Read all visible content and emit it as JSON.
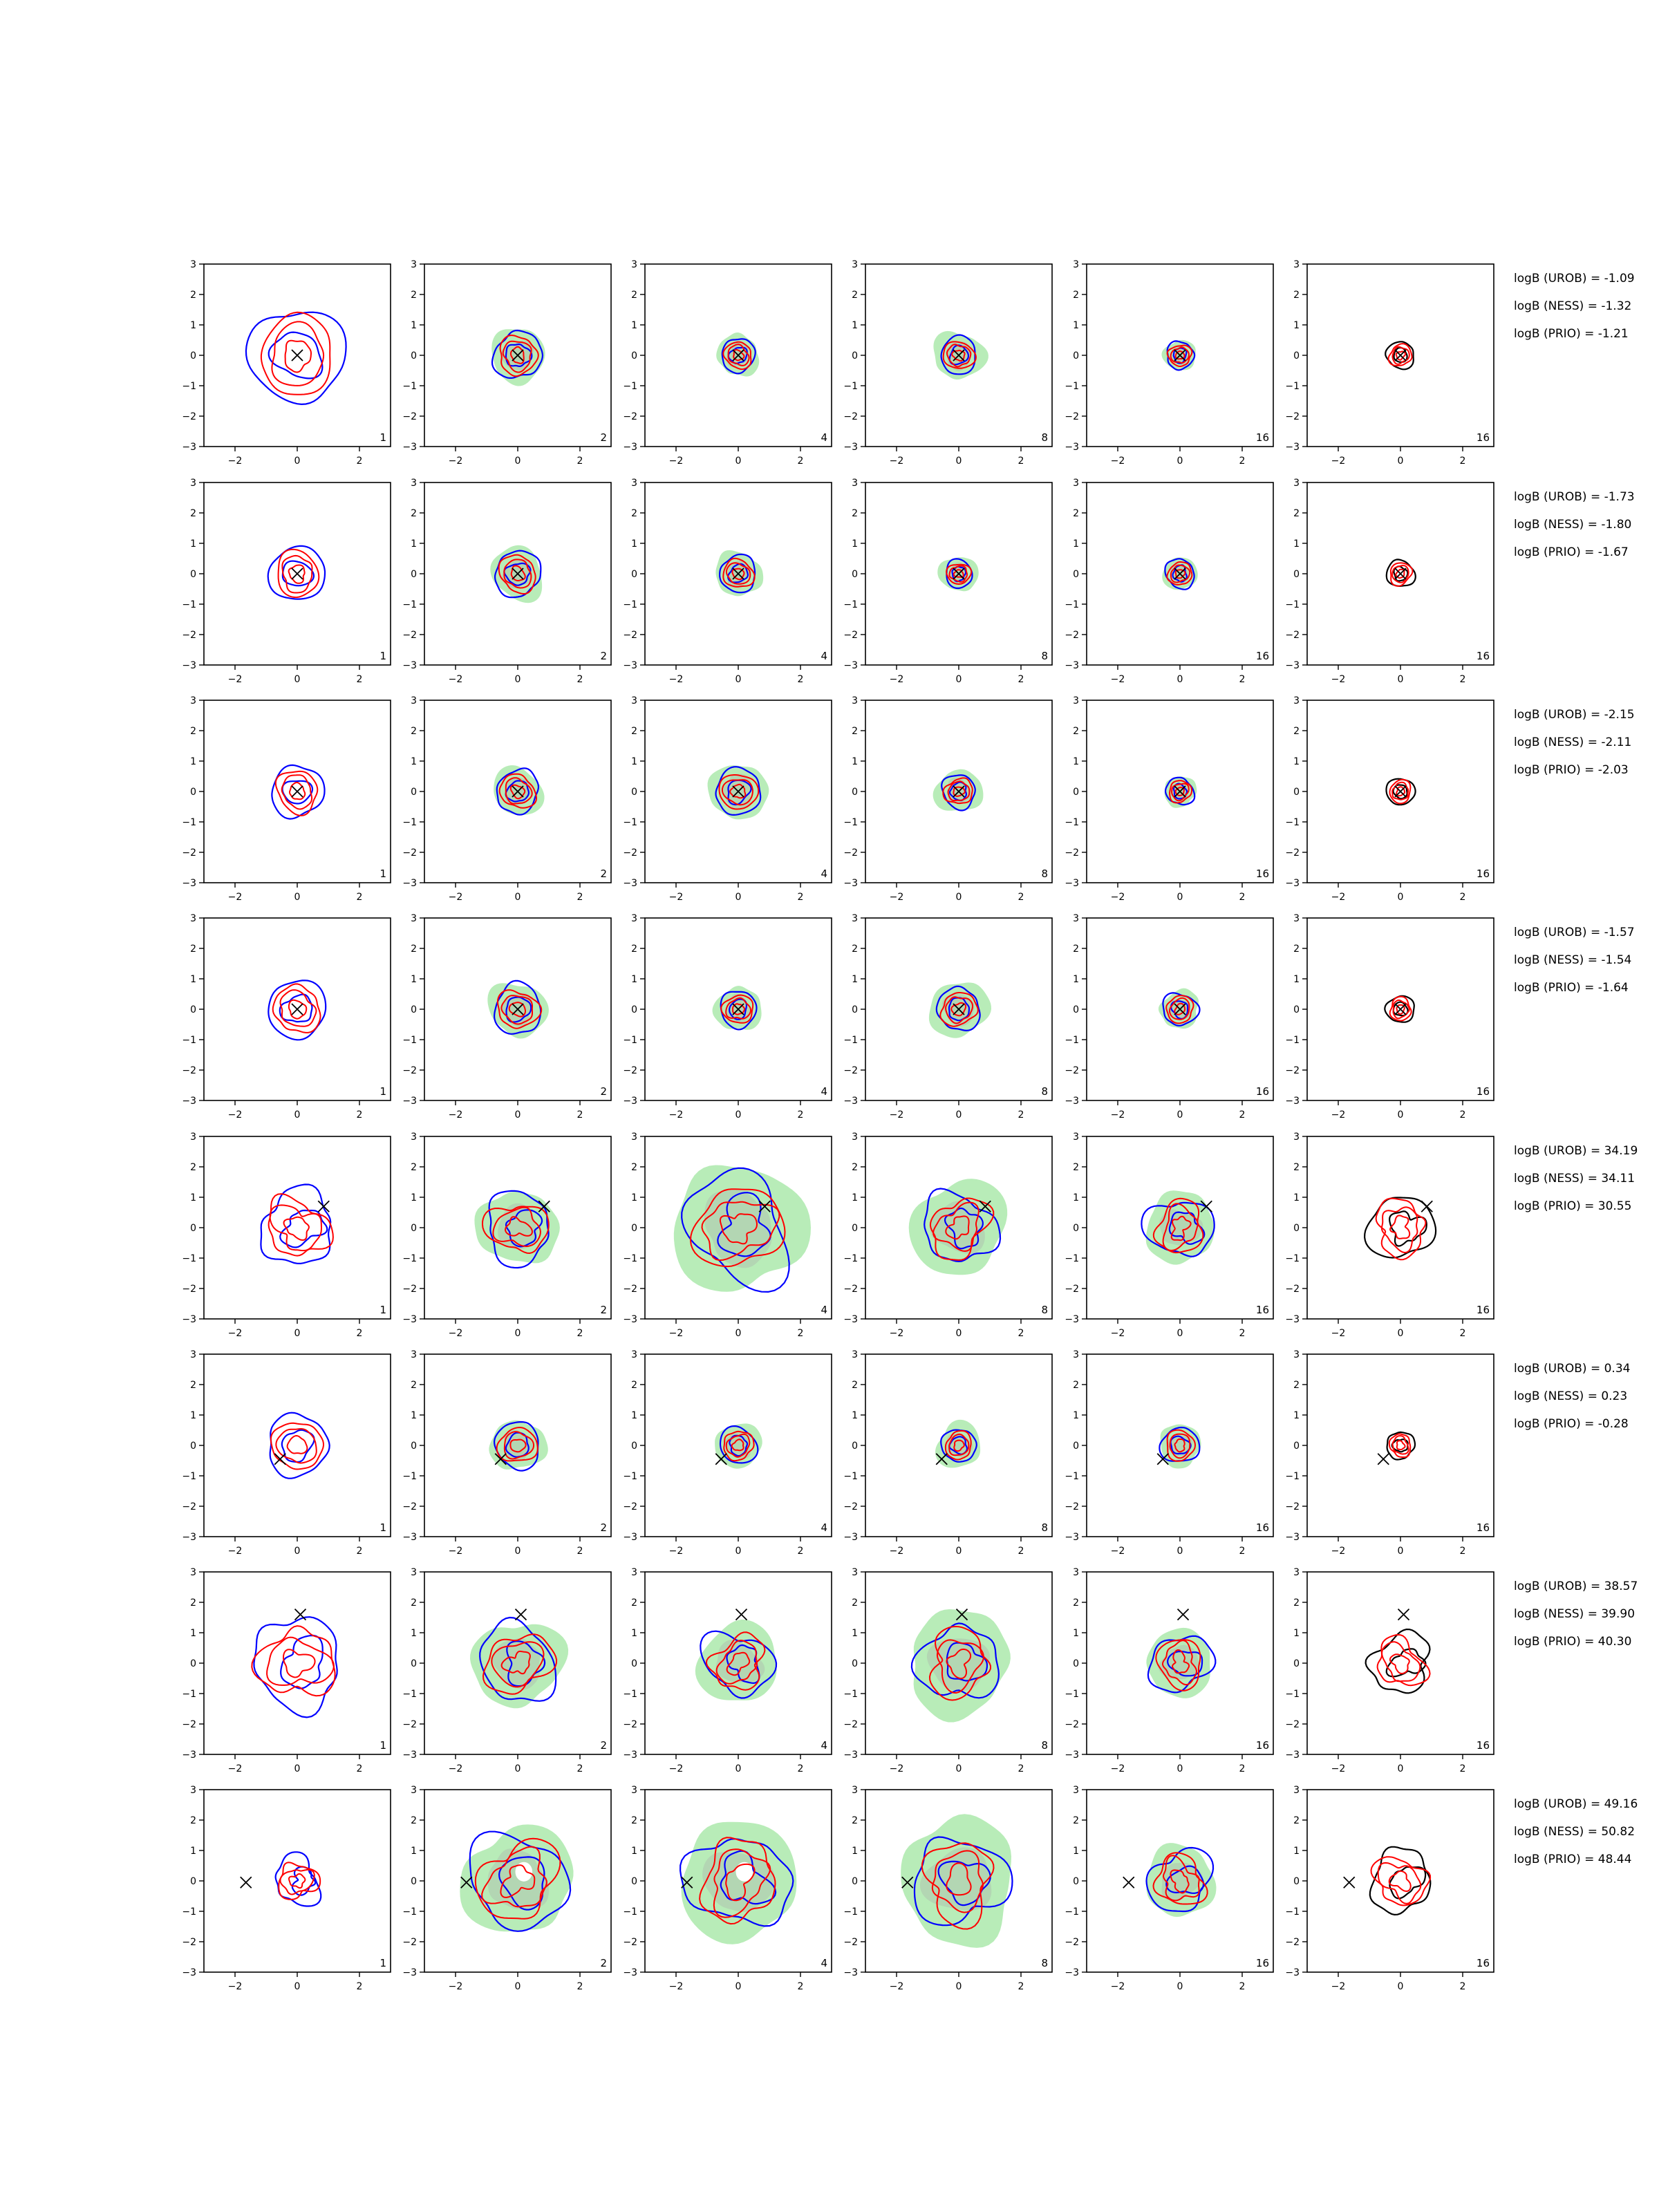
{
  "chart_data": {
    "type": "contour-grid",
    "xlim": [
      -3,
      3
    ],
    "ylim": [
      -3,
      3
    ],
    "x_ticks": [
      "−2",
      "0",
      "2"
    ],
    "y_ticks": [
      "3",
      "2",
      "1",
      "0",
      "−1",
      "−2",
      "−3"
    ],
    "column_labels": [
      "1",
      "2",
      "4",
      "8",
      "16",
      "16"
    ],
    "colors": {
      "blue": "#0000ff",
      "red": "#ff0000",
      "black": "#000000",
      "fill": "#b8ecb8",
      "fill_inner": "#b0cdb0"
    },
    "rows": [
      {
        "marker": [
          0.0,
          0.0
        ],
        "pattern": "blob",
        "scales": [
          1.55,
          0.78,
          0.55,
          0.6,
          0.45,
          0.45
        ],
        "annotations": [
          "logB (UROB) = -1.09",
          "logB (NESS) = -1.32",
          "logB (PRIO) = -1.21"
        ]
      },
      {
        "marker": [
          0.0,
          0.0
        ],
        "pattern": "compact",
        "scales": [
          0.9,
          0.75,
          0.6,
          0.45,
          0.48,
          0.45
        ],
        "annotations": [
          "logB (UROB) = -1.73",
          "logB (NESS) = -1.80",
          "logB (PRIO) = -1.67"
        ]
      },
      {
        "marker": [
          0.0,
          0.0
        ],
        "pattern": "compact",
        "scales": [
          0.85,
          0.7,
          0.75,
          0.55,
          0.45,
          0.45
        ],
        "annotations": [
          "logB (UROB) = -2.15",
          "logB (NESS) = -2.11",
          "logB (PRIO) = -2.03"
        ]
      },
      {
        "marker": [
          0.0,
          0.0
        ],
        "pattern": "compact",
        "scales": [
          0.95,
          0.8,
          0.6,
          0.7,
          0.55,
          0.45
        ],
        "annotations": [
          "logB (UROB) = -1.57",
          "logB (NESS) = -1.54",
          "logB (PRIO) = -1.64"
        ]
      },
      {
        "marker": [
          0.85,
          0.7
        ],
        "pattern": "ring",
        "scales": [
          1.2,
          1.1,
          1.7,
          1.15,
          1.0,
          1.05
        ],
        "annotations": [
          "logB (UROB) = 34.19",
          "logB (NESS) = 34.11",
          "logB (PRIO) = 30.55"
        ]
      },
      {
        "marker": [
          -0.55,
          -0.45
        ],
        "pattern": "compact",
        "scales": [
          1.0,
          0.75,
          0.6,
          0.55,
          0.6,
          0.45
        ],
        "annotations": [
          "logB (UROB) = 0.34",
          "logB (NESS) = 0.23",
          "logB (PRIO) = -0.28"
        ]
      },
      {
        "marker": [
          0.1,
          1.6
        ],
        "pattern": "ring",
        "scales": [
          1.45,
          1.25,
          1.05,
          1.25,
          0.95,
          0.95
        ],
        "annotations": [
          "logB (UROB) = 38.57",
          "logB (NESS) = 39.90",
          "logB (PRIO) = 40.30"
        ]
      },
      {
        "marker": [
          -1.65,
          -0.05
        ],
        "pattern": "ring",
        "scales": [
          0.75,
          1.55,
          1.55,
          1.45,
          1.0,
          1.0
        ],
        "annotations": [
          "logB (UROB) = 49.16",
          "logB (NESS) = 50.82",
          "logB (PRIO) = 48.44"
        ]
      }
    ]
  }
}
